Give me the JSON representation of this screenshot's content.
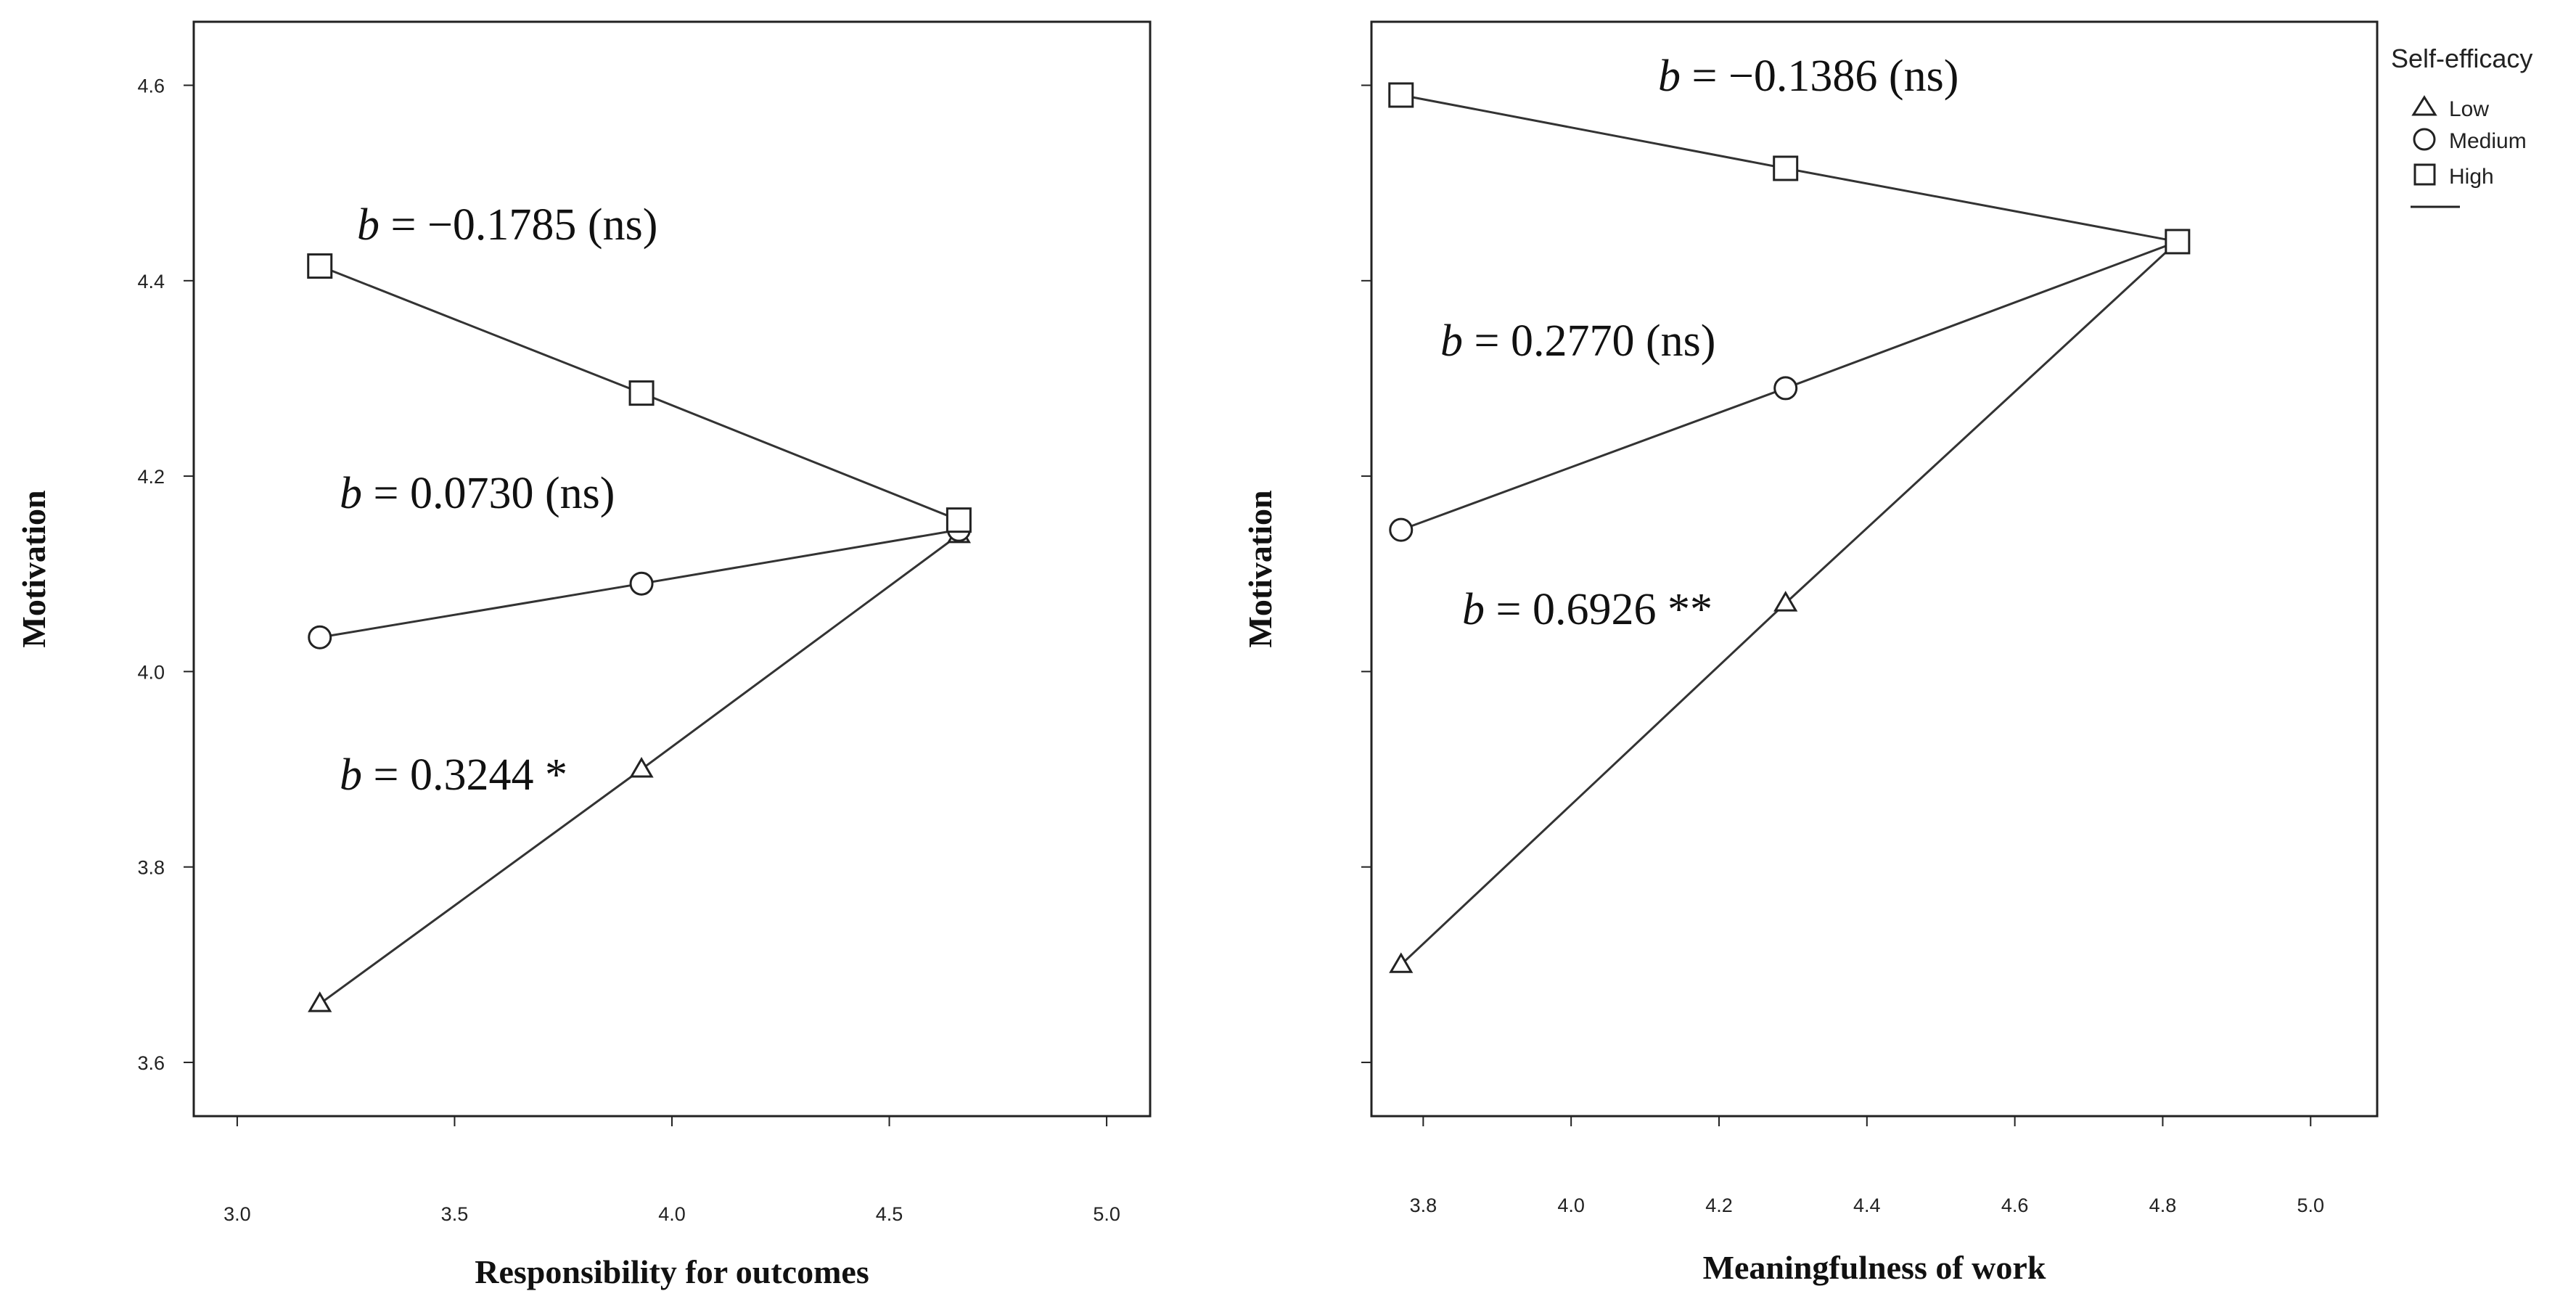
{
  "legend": {
    "title": "Self-efficacy",
    "items": [
      "Low",
      "Medium",
      "High"
    ]
  },
  "chart_data": [
    {
      "type": "line",
      "xlabel": "Responsibility for outcomes",
      "ylabel": "Motivation",
      "xlim": [
        2.9,
        5.1
      ],
      "ylim": [
        3.545,
        4.665
      ],
      "x_ticks": [
        "3.0",
        "3.5",
        "4.0",
        "4.5",
        "5.0"
      ],
      "y_ticks": [
        "3.6",
        "3.8",
        "4.0",
        "4.2",
        "4.4",
        "4.6"
      ],
      "x": [
        3.19,
        3.93,
        4.66
      ],
      "series": [
        {
          "name": "Low",
          "marker": "triangle",
          "values": [
            3.66,
            3.9,
            4.14
          ]
        },
        {
          "name": "Medium",
          "marker": "circle",
          "values": [
            4.035,
            4.09,
            4.145
          ]
        },
        {
          "name": "High",
          "marker": "square",
          "values": [
            4.415,
            4.285,
            4.155
          ]
        }
      ],
      "annotations": [
        {
          "text": "= −0.1785 (ns)",
          "series": "High"
        },
        {
          "text": "= 0.0730 (ns)",
          "series": "Medium"
        },
        {
          "text": "= 0.3244 *",
          "series": "Low"
        }
      ],
      "grid": false
    },
    {
      "type": "line",
      "xlabel": "Meaningfulness of work",
      "ylabel": "Motivation",
      "xlim": [
        3.73,
        5.09
      ],
      "ylim": [
        3.545,
        4.665
      ],
      "x_ticks": [
        "3.8",
        "4.0",
        "4.2",
        "4.4",
        "4.6",
        "4.8",
        "5.0"
      ],
      "y_ticks": [],
      "x": [
        3.77,
        4.29,
        4.82
      ],
      "series": [
        {
          "name": "Low",
          "marker": "triangle",
          "values": [
            3.7,
            4.07,
            4.44
          ]
        },
        {
          "name": "Medium",
          "marker": "circle",
          "values": [
            4.145,
            4.29,
            4.44
          ]
        },
        {
          "name": "High",
          "marker": "square",
          "values": [
            4.59,
            4.515,
            4.44
          ]
        }
      ],
      "annotations": [
        {
          "text": "= −0.1386 (ns)",
          "series": "High"
        },
        {
          "text": "= 0.2770 (ns)",
          "series": "Medium"
        },
        {
          "text": "= 0.6926 **",
          "series": "Low"
        }
      ],
      "grid": false
    }
  ]
}
